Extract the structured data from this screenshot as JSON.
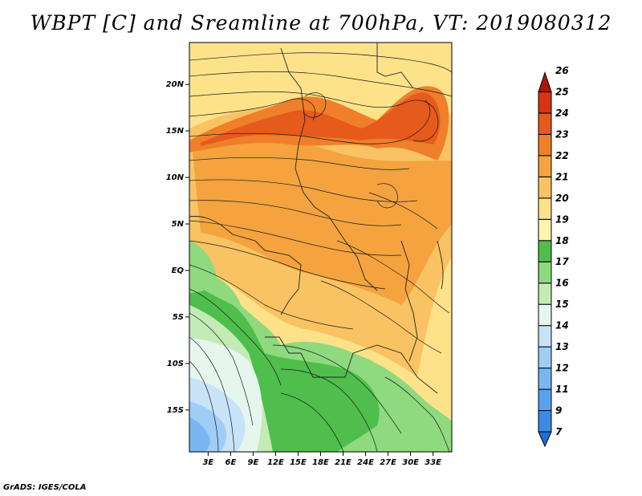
{
  "title": "WBPT [C] and Sreamline at 700hPa, VT: 2019080312",
  "credit": "GrADS: IGES/COLA",
  "map": {
    "lat_labels": [
      "20N",
      "15N",
      "10N",
      "5N",
      "EQ",
      "5S",
      "10S",
      "15S"
    ],
    "lon_labels": [
      "3E",
      "6E",
      "9E",
      "12E",
      "15E",
      "18E",
      "21E",
      "24E",
      "27E",
      "30E",
      "33E"
    ],
    "lat_range": [
      -19.5,
      24.5
    ],
    "lon_range": [
      0.5,
      35.5
    ]
  },
  "colorbar": {
    "labels": [
      "7",
      "9",
      "11",
      "12",
      "13",
      "14",
      "15",
      "16",
      "17",
      "18",
      "19",
      "20",
      "21",
      "22",
      "23",
      "24",
      "25",
      "26"
    ],
    "colors": [
      "#1f6ed6",
      "#3c8ae6",
      "#5aa0ee",
      "#7ab6f2",
      "#a0cdf5",
      "#c8e3f8",
      "#e6f6ef",
      "#c3ebb6",
      "#8fd97f",
      "#4fbe4c",
      "#fff4b0",
      "#fde28a",
      "#f9c363",
      "#f4a33f",
      "#ef7f2a",
      "#e65a1c",
      "#d63412",
      "#b0140a"
    ]
  }
}
